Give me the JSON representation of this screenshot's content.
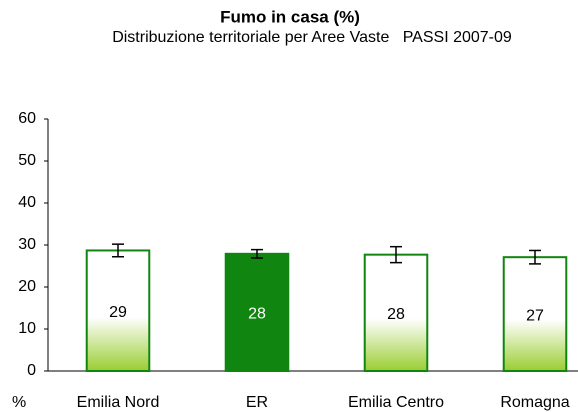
{
  "chart_data": {
    "type": "bar",
    "title": "Fumo in casa (%)",
    "subtitle": "Distribuzione territoriale per Aree Vaste   PASSI 2007-09",
    "y_label": "%",
    "categories": [
      "Emilia Nord",
      "ER",
      "Emilia Centro",
      "Romagna"
    ],
    "values": [
      28.7,
      27.9,
      27.7,
      27.1
    ],
    "value_labels": [
      "29",
      "28",
      "28",
      "27"
    ],
    "errors": [
      1.5,
      1.0,
      1.9,
      1.6
    ],
    "colors": [
      "#9acd32",
      "#108510",
      "#9acd32",
      "#9acd32"
    ],
    "gradient": [
      true,
      false,
      true,
      true
    ],
    "border_color": "#108510",
    "ylim": [
      0,
      60
    ],
    "yticks": [
      0,
      10,
      20,
      30,
      40,
      50,
      60
    ],
    "grid": false
  }
}
